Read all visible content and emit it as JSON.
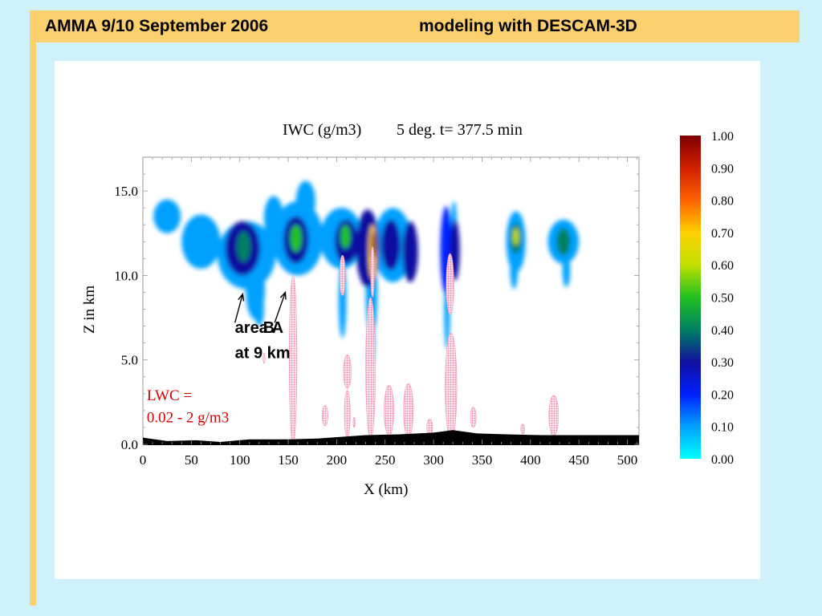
{
  "slide": {
    "title_left": "AMMA 9/10 September 2006",
    "title_right": "modeling with DESCAM-3D",
    "colors": {
      "background": "#cff1fb",
      "title_bar": "#fdd06f",
      "panel": "#ffffff"
    }
  },
  "chart_data": {
    "type": "heatmap",
    "title": "IWC (g/m3)",
    "subtitle": "5 deg. t= 377.5 min",
    "xlabel": "X (km)",
    "ylabel": "Z in km",
    "xlim": [
      0,
      512
    ],
    "ylim": [
      0,
      17
    ],
    "x_ticks": [
      0,
      50,
      100,
      150,
      200,
      250,
      300,
      350,
      400,
      450,
      500
    ],
    "x_tick_labels": [
      "0",
      "50",
      "100",
      "150",
      "200",
      "250",
      "300",
      "350",
      "400",
      "450",
      "500"
    ],
    "y_ticks": [
      0,
      5,
      10,
      15
    ],
    "y_tick_labels": [
      "0.0",
      "5.0",
      "10.0",
      "15.0"
    ],
    "colorbar": {
      "range": [
        0,
        1
      ],
      "ticks": [
        0.0,
        0.1,
        0.2,
        0.3,
        0.4,
        0.5,
        0.6,
        0.7,
        0.8,
        0.9,
        1.0
      ],
      "tick_labels": [
        "0.00",
        "0.10",
        "0.20",
        "0.30",
        "0.40",
        "0.50",
        "0.60",
        "0.70",
        "0.80",
        "0.90",
        "1.00"
      ],
      "colors": [
        "#00ffff",
        "#00a0ff",
        "#0020ff",
        "#1010a0",
        "#008060",
        "#20c020",
        "#c0e000",
        "#ffd000",
        "#ff6000",
        "#d02000",
        "#800000"
      ]
    },
    "annotations": [
      {
        "text": "area A",
        "x": 95,
        "y": 6.6
      },
      {
        "text": "B",
        "x": 124,
        "y": 6.6
      },
      {
        "text": "at 9 km",
        "x": 95,
        "y": 5.1
      },
      {
        "text": "LWC =",
        "x": 4,
        "y": 2.6,
        "color": "#d00000"
      },
      {
        "text": "0.02 - 2 g/m3",
        "x": 4,
        "y": 1.3,
        "color": "#d00000"
      }
    ],
    "arrows": [
      {
        "from": [
          95,
          7.2
        ],
        "to": [
          103,
          8.9
        ]
      },
      {
        "from": [
          136,
          7.2
        ],
        "to": [
          147,
          9.0
        ]
      }
    ],
    "iwc_cells": [
      {
        "x": 25,
        "y": 13.5,
        "rx": 14,
        "ry": 1.0,
        "v": 0.08
      },
      {
        "x": 60,
        "y": 12.0,
        "rx": 20,
        "ry": 1.6,
        "v": 0.1
      },
      {
        "x": 107,
        "y": 11.2,
        "rx": 30,
        "ry": 2.0,
        "v": 0.12
      },
      {
        "x": 103,
        "y": 11.6,
        "rx": 18,
        "ry": 1.6,
        "v": 0.28
      },
      {
        "x": 104,
        "y": 11.7,
        "rx": 7,
        "ry": 0.9,
        "v": 0.35
      },
      {
        "x": 116,
        "y": 9.2,
        "rx": 10,
        "ry": 1.8,
        "v": 0.12
      },
      {
        "x": 120,
        "y": 8.0,
        "rx": 5,
        "ry": 1.0,
        "v": 0.08
      },
      {
        "x": 135,
        "y": 13.4,
        "rx": 10,
        "ry": 1.3,
        "v": 0.08
      },
      {
        "x": 160,
        "y": 12.2,
        "rx": 26,
        "ry": 2.2,
        "v": 0.12
      },
      {
        "x": 158,
        "y": 12.1,
        "rx": 13,
        "ry": 1.4,
        "v": 0.3
      },
      {
        "x": 158,
        "y": 12.2,
        "rx": 6,
        "ry": 0.8,
        "v": 0.5
      },
      {
        "x": 168,
        "y": 14.4,
        "rx": 10,
        "ry": 1.2,
        "v": 0.08
      },
      {
        "x": 205,
        "y": 12.2,
        "rx": 22,
        "ry": 1.8,
        "v": 0.12
      },
      {
        "x": 210,
        "y": 12.0,
        "rx": 12,
        "ry": 1.3,
        "v": 0.32
      },
      {
        "x": 209,
        "y": 12.3,
        "rx": 5,
        "ry": 0.7,
        "v": 0.5
      },
      {
        "x": 206,
        "y": 8.5,
        "rx": 4,
        "ry": 2.2,
        "v": 0.12
      },
      {
        "x": 232,
        "y": 11.6,
        "rx": 12,
        "ry": 2.3,
        "v": 0.28
      },
      {
        "x": 237,
        "y": 11.4,
        "rx": 4,
        "ry": 1.6,
        "v": 0.65
      },
      {
        "x": 238,
        "y": 11.8,
        "rx": 2,
        "ry": 0.8,
        "v": 0.95
      },
      {
        "x": 236,
        "y": 9.0,
        "rx": 6,
        "ry": 2.5,
        "v": 0.12
      },
      {
        "x": 236,
        "y": 6.0,
        "rx": 3,
        "ry": 1.3,
        "v": 0.1
      },
      {
        "x": 258,
        "y": 11.8,
        "rx": 20,
        "ry": 2.2,
        "v": 0.12
      },
      {
        "x": 256,
        "y": 11.8,
        "rx": 10,
        "ry": 1.5,
        "v": 0.3
      },
      {
        "x": 276,
        "y": 11.4,
        "rx": 8,
        "ry": 1.8,
        "v": 0.25
      },
      {
        "x": 313,
        "y": 11.5,
        "rx": 6,
        "ry": 2.6,
        "v": 0.15
      },
      {
        "x": 322,
        "y": 11.5,
        "rx": 5,
        "ry": 1.8,
        "v": 0.25
      },
      {
        "x": 314,
        "y": 8.0,
        "rx": 3,
        "ry": 2.4,
        "v": 0.12
      },
      {
        "x": 321,
        "y": 13.1,
        "rx": 3,
        "ry": 1.3,
        "v": 0.1
      },
      {
        "x": 385,
        "y": 12.0,
        "rx": 10,
        "ry": 1.8,
        "v": 0.12
      },
      {
        "x": 385,
        "y": 12.2,
        "rx": 6,
        "ry": 0.9,
        "v": 0.4
      },
      {
        "x": 385,
        "y": 12.3,
        "rx": 3,
        "ry": 0.5,
        "v": 0.62
      },
      {
        "x": 383,
        "y": 10.4,
        "rx": 4,
        "ry": 1.2,
        "v": 0.1
      },
      {
        "x": 434,
        "y": 12.0,
        "rx": 16,
        "ry": 1.3,
        "v": 0.12
      },
      {
        "x": 434,
        "y": 12.0,
        "rx": 7,
        "ry": 0.8,
        "v": 0.35
      },
      {
        "x": 437,
        "y": 10.3,
        "rx": 4,
        "ry": 1.0,
        "v": 0.1
      }
    ],
    "lwc_cells": [
      {
        "x": 155,
        "y": 5.0,
        "rx": 4,
        "ry": 5.0
      },
      {
        "x": 206,
        "y": 10.0,
        "rx": 3,
        "ry": 1.2
      },
      {
        "x": 211,
        "y": 4.3,
        "rx": 4,
        "ry": 1.0
      },
      {
        "x": 211,
        "y": 1.8,
        "rx": 3,
        "ry": 1.4
      },
      {
        "x": 188,
        "y": 1.7,
        "rx": 3,
        "ry": 0.6
      },
      {
        "x": 235,
        "y": 4.5,
        "rx": 5,
        "ry": 4.2
      },
      {
        "x": 237,
        "y": 10.2,
        "rx": 2,
        "ry": 1.5
      },
      {
        "x": 254,
        "y": 2.0,
        "rx": 5,
        "ry": 1.5
      },
      {
        "x": 274,
        "y": 2.0,
        "rx": 5,
        "ry": 1.6
      },
      {
        "x": 296,
        "y": 1.0,
        "rx": 3,
        "ry": 0.5
      },
      {
        "x": 317,
        "y": 9.5,
        "rx": 4,
        "ry": 1.8
      },
      {
        "x": 318,
        "y": 3.4,
        "rx": 6,
        "ry": 3.2
      },
      {
        "x": 341,
        "y": 1.6,
        "rx": 3,
        "ry": 0.6
      },
      {
        "x": 392,
        "y": 0.9,
        "rx": 2,
        "ry": 0.3
      },
      {
        "x": 424,
        "y": 1.7,
        "rx": 5,
        "ry": 1.2
      },
      {
        "x": 125,
        "y": 5.1,
        "rx": 1,
        "ry": 0.3
      },
      {
        "x": 218,
        "y": 1.3,
        "rx": 1,
        "ry": 0.3
      }
    ],
    "terrain": [
      [
        0,
        0.3
      ],
      [
        25,
        0.1
      ],
      [
        55,
        0.15
      ],
      [
        80,
        0.05
      ],
      [
        110,
        0.2
      ],
      [
        150,
        0.2
      ],
      [
        180,
        0.25
      ],
      [
        205,
        0.35
      ],
      [
        230,
        0.45
      ],
      [
        265,
        0.5
      ],
      [
        300,
        0.6
      ],
      [
        320,
        0.75
      ],
      [
        345,
        0.55
      ],
      [
        375,
        0.5
      ],
      [
        410,
        0.45
      ],
      [
        450,
        0.45
      ],
      [
        490,
        0.45
      ],
      [
        512,
        0.45
      ]
    ]
  }
}
